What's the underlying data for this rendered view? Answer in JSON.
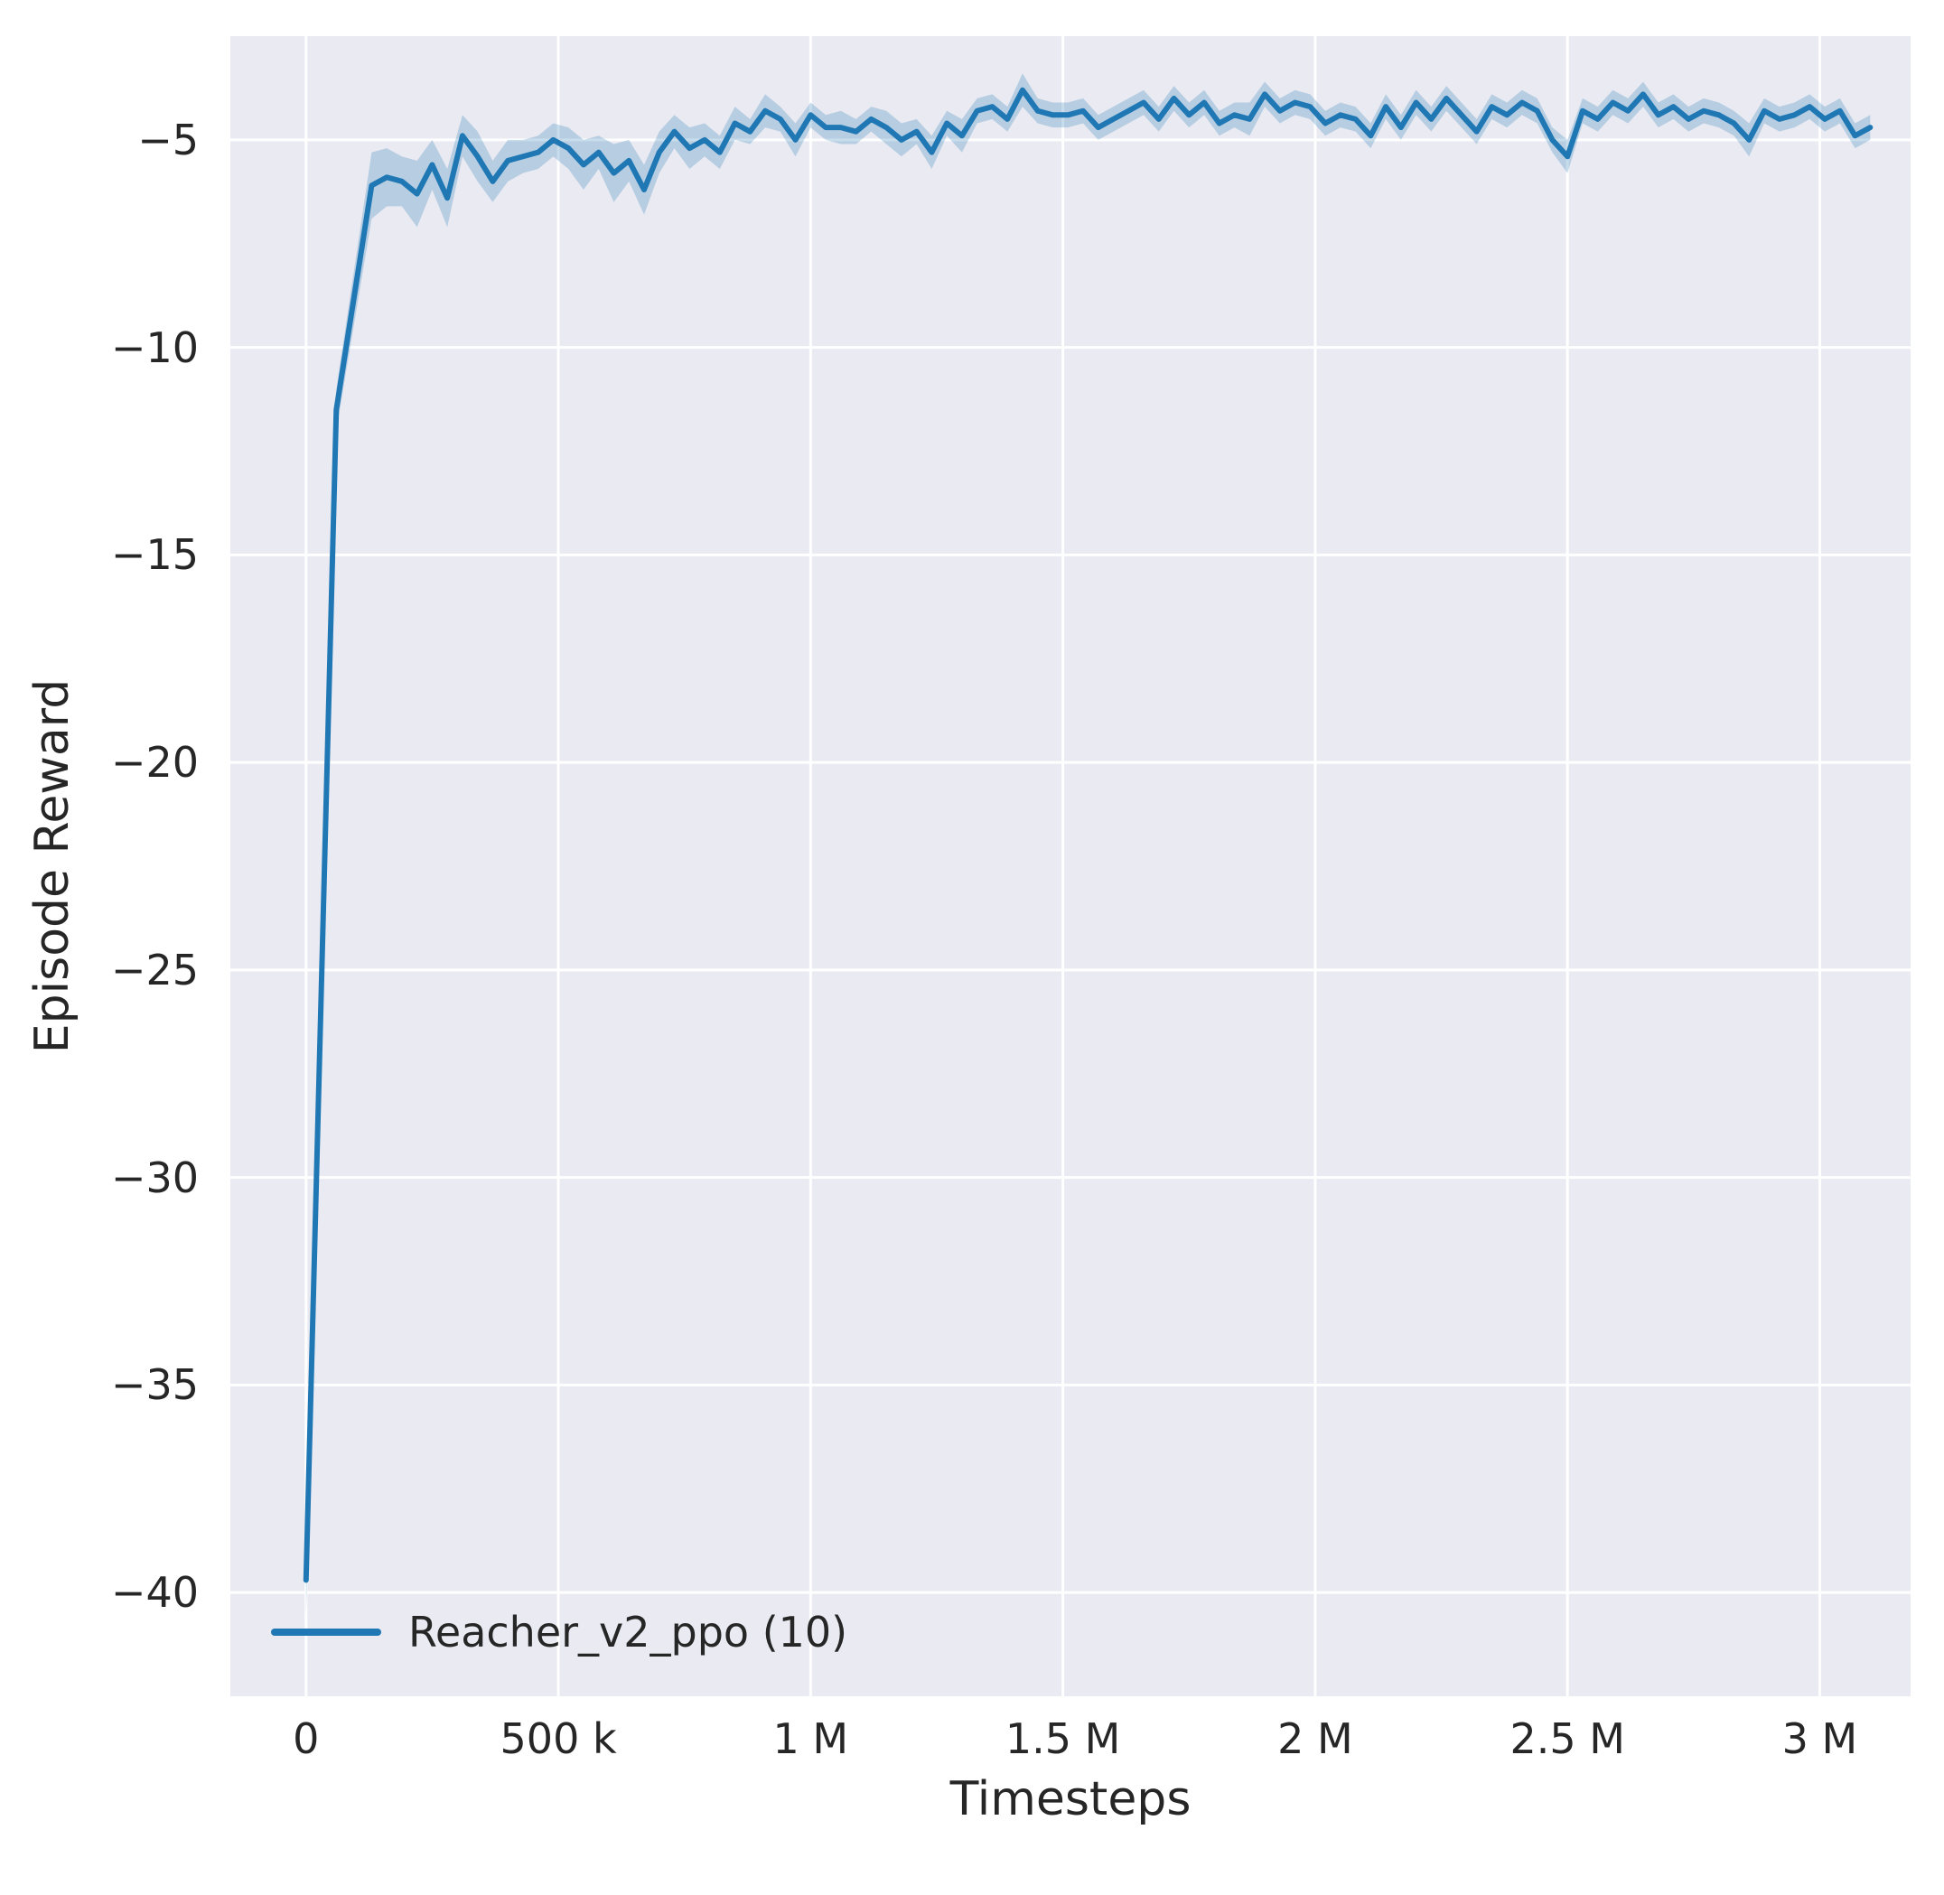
{
  "chart_data": {
    "type": "line",
    "title": "",
    "xlabel": "Timesteps",
    "ylabel": "Episode Reward",
    "xlim": [
      -150000,
      3180000
    ],
    "ylim": [
      -42.5,
      -2.5
    ],
    "grid": true,
    "legend_position": "lower left",
    "xticks": {
      "values": [
        0,
        500000,
        1000000,
        1500000,
        2000000,
        2500000,
        3000000
      ],
      "labels": [
        "0",
        "500 k",
        "1 M",
        "1.5 M",
        "2 M",
        "2.5 M",
        "3 M"
      ]
    },
    "yticks": {
      "values": [
        -5,
        -10,
        -15,
        -20,
        -25,
        -30,
        -35,
        -40
      ],
      "labels": [
        "−5",
        "−10",
        "−15",
        "−20",
        "−25",
        "−30",
        "−35",
        "−40"
      ]
    },
    "colors": {
      "line": "#1f77b4",
      "band": "#1f77b4",
      "background": "#eaeaf2",
      "grid": "#ffffff",
      "text": "#262626"
    },
    "series": [
      {
        "name": "Reacher_v2_ppo (10)",
        "x": [
          0,
          60000,
          130000,
          160000,
          190000,
          220000,
          250000,
          280000,
          310000,
          340000,
          370000,
          400000,
          430000,
          460000,
          490000,
          520000,
          550000,
          580000,
          610000,
          640000,
          670000,
          700000,
          730000,
          760000,
          790000,
          820000,
          850000,
          880000,
          910000,
          940000,
          970000,
          1000000,
          1030000,
          1060000,
          1090000,
          1120000,
          1150000,
          1180000,
          1210000,
          1240000,
          1270000,
          1300000,
          1330000,
          1360000,
          1390000,
          1420000,
          1450000,
          1480000,
          1510000,
          1540000,
          1570000,
          1600000,
          1630000,
          1660000,
          1690000,
          1720000,
          1750000,
          1780000,
          1810000,
          1840000,
          1870000,
          1900000,
          1930000,
          1960000,
          1990000,
          2020000,
          2050000,
          2080000,
          2110000,
          2140000,
          2170000,
          2200000,
          2230000,
          2260000,
          2290000,
          2320000,
          2350000,
          2380000,
          2410000,
          2440000,
          2470000,
          2500000,
          2530000,
          2560000,
          2590000,
          2620000,
          2650000,
          2680000,
          2710000,
          2740000,
          2770000,
          2800000,
          2830000,
          2860000,
          2890000,
          2920000,
          2950000,
          2980000,
          3010000,
          3040000,
          3070000,
          3100000
        ],
        "y": [
          -39.7,
          -11.5,
          -6.1,
          -5.9,
          -6.0,
          -6.3,
          -5.6,
          -6.4,
          -4.9,
          -5.4,
          -6.0,
          -5.5,
          -5.4,
          -5.3,
          -5.0,
          -5.2,
          -5.6,
          -5.3,
          -5.8,
          -5.5,
          -6.2,
          -5.3,
          -4.8,
          -5.2,
          -5.0,
          -5.3,
          -4.6,
          -4.8,
          -4.3,
          -4.5,
          -5.0,
          -4.4,
          -4.7,
          -4.7,
          -4.8,
          -4.5,
          -4.7,
          -5.0,
          -4.8,
          -5.3,
          -4.6,
          -4.9,
          -4.3,
          -4.2,
          -4.5,
          -3.8,
          -4.3,
          -4.4,
          -4.4,
          -4.3,
          -4.7,
          -4.5,
          -4.3,
          -4.1,
          -4.5,
          -4.0,
          -4.4,
          -4.1,
          -4.6,
          -4.4,
          -4.5,
          -3.9,
          -4.3,
          -4.1,
          -4.2,
          -4.6,
          -4.4,
          -4.5,
          -4.9,
          -4.2,
          -4.7,
          -4.1,
          -4.5,
          -4.0,
          -4.4,
          -4.8,
          -4.2,
          -4.4,
          -4.1,
          -4.3,
          -5.0,
          -5.4,
          -4.3,
          -4.5,
          -4.1,
          -4.3,
          -3.9,
          -4.4,
          -4.2,
          -4.5,
          -4.3,
          -4.4,
          -4.6,
          -5.0,
          -4.3,
          -4.5,
          -4.4,
          -4.2,
          -4.5,
          -4.3,
          -4.9,
          -4.7
        ],
        "band": [
          0.9,
          0.5,
          0.8,
          0.7,
          0.6,
          0.8,
          0.6,
          0.7,
          0.5,
          0.6,
          0.5,
          0.5,
          0.4,
          0.4,
          0.4,
          0.5,
          0.6,
          0.4,
          0.7,
          0.5,
          0.6,
          0.5,
          0.4,
          0.5,
          0.4,
          0.4,
          0.4,
          0.3,
          0.4,
          0.3,
          0.4,
          0.3,
          0.3,
          0.4,
          0.3,
          0.3,
          0.4,
          0.4,
          0.3,
          0.4,
          0.3,
          0.4,
          0.3,
          0.3,
          0.3,
          0.4,
          0.3,
          0.3,
          0.3,
          0.3,
          0.3,
          0.3,
          0.3,
          0.3,
          0.3,
          0.3,
          0.3,
          0.3,
          0.3,
          0.3,
          0.4,
          0.3,
          0.3,
          0.3,
          0.3,
          0.3,
          0.3,
          0.3,
          0.3,
          0.3,
          0.3,
          0.3,
          0.3,
          0.3,
          0.3,
          0.3,
          0.3,
          0.3,
          0.3,
          0.3,
          0.3,
          0.4,
          0.3,
          0.3,
          0.3,
          0.3,
          0.3,
          0.3,
          0.3,
          0.3,
          0.3,
          0.3,
          0.3,
          0.4,
          0.3,
          0.3,
          0.3,
          0.3,
          0.3,
          0.3,
          0.3,
          0.3
        ]
      }
    ]
  }
}
